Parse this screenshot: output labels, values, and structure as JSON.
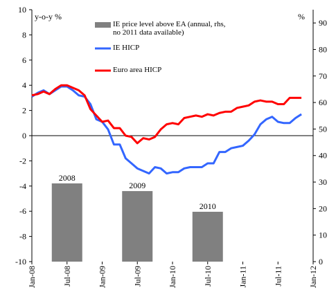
{
  "chart_data": {
    "type": "line",
    "y_label": "y-o-y %",
    "y2_label": "%",
    "categories": [
      "Jan-08",
      null,
      null,
      null,
      null,
      null,
      "Jul-08",
      null,
      null,
      null,
      null,
      null,
      "Jan-09",
      null,
      null,
      null,
      null,
      null,
      "Jul-09",
      null,
      null,
      null,
      null,
      null,
      "Jan-10",
      null,
      null,
      null,
      null,
      null,
      "Jul-10",
      null,
      null,
      null,
      null,
      null,
      "Jan-11",
      null,
      null,
      null,
      null,
      null,
      "Jul-11",
      null,
      null,
      null,
      null,
      null,
      "Jan-12"
    ],
    "ylim": [
      -10,
      10
    ],
    "yticks": [
      -10,
      -8,
      -6,
      -4,
      -2,
      0,
      2,
      4,
      6,
      8,
      10
    ],
    "y2lim": [
      0,
      95
    ],
    "y2ticks": [
      0,
      10,
      20,
      30,
      40,
      50,
      60,
      70,
      80,
      90
    ],
    "series": [
      {
        "name": "IE price level above EA (annual, rhs, no 2011 data available)",
        "type": "bar",
        "axis": "y2",
        "color": "#808080",
        "values": [
          null,
          null,
          null,
          null,
          null,
          null,
          29.5,
          null,
          null,
          null,
          null,
          null,
          null,
          null,
          null,
          null,
          null,
          null,
          26.6,
          null,
          null,
          null,
          null,
          null,
          null,
          null,
          null,
          null,
          null,
          null,
          18.8,
          null,
          null,
          null,
          null,
          null,
          null,
          null,
          null,
          null,
          null,
          null,
          null,
          null,
          null,
          null,
          null,
          null,
          null
        ],
        "labels": [
          null,
          null,
          null,
          null,
          null,
          null,
          "2008",
          null,
          null,
          null,
          null,
          null,
          null,
          null,
          null,
          null,
          null,
          null,
          "2009",
          null,
          null,
          null,
          null,
          null,
          null,
          null,
          null,
          null,
          null,
          null,
          "2010",
          null,
          null,
          null,
          null,
          null,
          null,
          null,
          null,
          null,
          null,
          null,
          null,
          null,
          null,
          null,
          null,
          null,
          null
        ]
      },
      {
        "name": "IE HICP",
        "type": "line",
        "color": "#3366ff",
        "values": [
          3.1,
          3.4,
          3.6,
          3.3,
          3.6,
          3.9,
          3.9,
          3.6,
          3.2,
          3.1,
          2.5,
          1.3,
          1.1,
          0.5,
          -0.7,
          -0.7,
          -1.8,
          -2.2,
          -2.6,
          -2.8,
          -3.0,
          -2.5,
          -2.6,
          -3.0,
          -2.9,
          -2.9,
          -2.6,
          -2.5,
          -2.5,
          -2.5,
          -2.2,
          -2.2,
          -1.3,
          -1.3,
          -1.0,
          -0.9,
          -0.8,
          -0.4,
          0.1,
          0.9,
          1.3,
          1.5,
          1.1,
          1.0,
          1.0,
          1.4,
          1.7,
          null,
          null
        ]
      },
      {
        "name": "Euro area HICP",
        "type": "line",
        "color": "#ff0000",
        "values": [
          3.2,
          3.3,
          3.5,
          3.3,
          3.7,
          4.0,
          4.0,
          3.8,
          3.6,
          3.2,
          2.1,
          1.6,
          1.1,
          1.2,
          0.6,
          0.6,
          0.0,
          -0.1,
          -0.6,
          -0.2,
          -0.3,
          -0.1,
          0.5,
          0.9,
          1.0,
          0.9,
          1.4,
          1.5,
          1.6,
          1.5,
          1.7,
          1.6,
          1.8,
          1.9,
          1.9,
          2.2,
          2.3,
          2.4,
          2.7,
          2.8,
          2.7,
          2.7,
          2.5,
          2.5,
          3.0,
          3.0,
          3.0,
          null,
          null
        ]
      }
    ]
  }
}
